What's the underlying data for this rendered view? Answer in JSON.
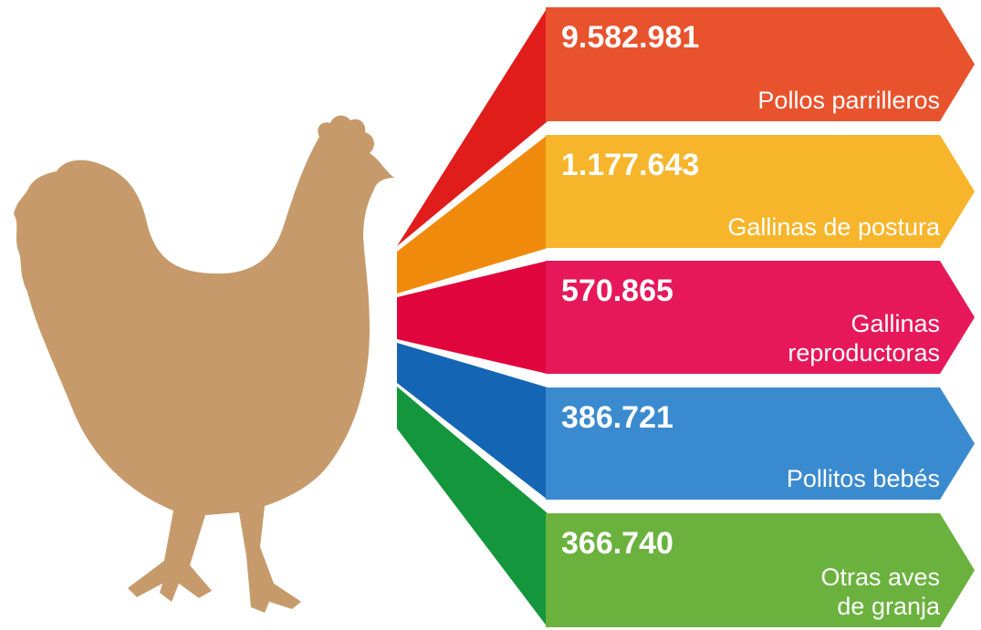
{
  "items": [
    {
      "number": "9.582.981",
      "label": [
        "Pollos parrilleros"
      ]
    },
    {
      "number": "1.177.643",
      "label": [
        "Gallinas de postura"
      ]
    },
    {
      "number": "570.865",
      "label": [
        "Gallinas",
        "reproductoras"
      ]
    },
    {
      "number": "386.721",
      "label": [
        "Pollitos bebés"
      ]
    },
    {
      "number": "366.740",
      "label": [
        "Otras aves",
        "de granja"
      ]
    }
  ]
}
